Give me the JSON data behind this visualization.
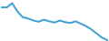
{
  "x": [
    0,
    1,
    2,
    3,
    4,
    5,
    6,
    7,
    8,
    9,
    10,
    11,
    12,
    13,
    14,
    15,
    16,
    17,
    18,
    19,
    20
  ],
  "y": [
    82,
    82,
    92,
    72,
    58,
    55,
    50,
    47,
    52,
    48,
    45,
    50,
    46,
    44,
    48,
    42,
    36,
    28,
    18,
    8,
    2
  ],
  "line_color": "#3a9fd4",
  "background_color": "#ffffff",
  "linewidth": 1.4,
  "ylim_min": 0,
  "ylim_max": 100
}
